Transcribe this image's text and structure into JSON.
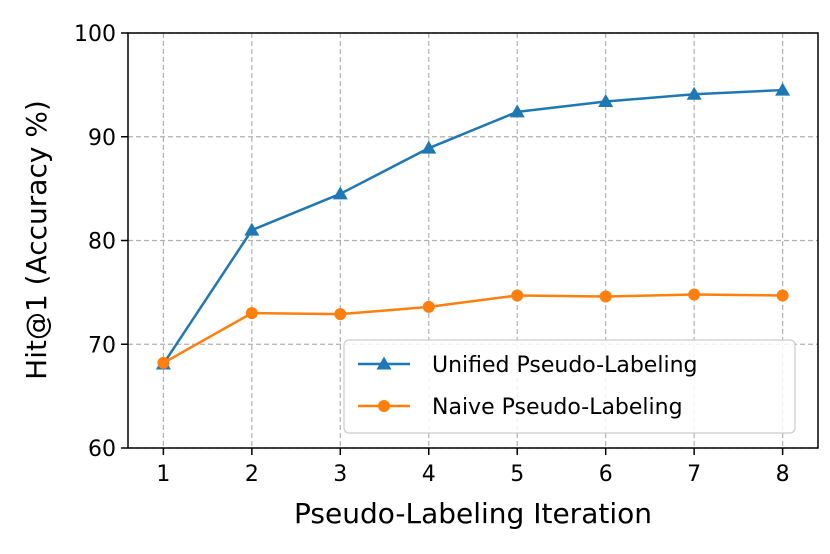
{
  "chart_data": {
    "type": "line",
    "title": "",
    "xlabel": "Pseudo-Labeling Iteration",
    "ylabel": "Hit@1 (Accuracy %)",
    "x": [
      1,
      2,
      3,
      4,
      5,
      6,
      7,
      8
    ],
    "xticks": [
      "1",
      "2",
      "3",
      "4",
      "5",
      "6",
      "7",
      "8"
    ],
    "yticks": [
      "60",
      "70",
      "80",
      "90",
      "100"
    ],
    "xlim": [
      0.6,
      8.4
    ],
    "ylim": [
      60,
      100
    ],
    "grid": true,
    "legend_position": "lower-right",
    "series": [
      {
        "name": "Unified Pseudo-Labeling",
        "marker": "triangle",
        "color": "#1f77b4",
        "values": [
          68.1,
          81.0,
          84.5,
          88.9,
          92.4,
          93.4,
          94.1,
          94.5
        ]
      },
      {
        "name": "Naive Pseudo-Labeling",
        "marker": "circle",
        "color": "#ff7f0e",
        "values": [
          68.2,
          73.0,
          72.9,
          73.6,
          74.7,
          74.6,
          74.8,
          74.7
        ]
      }
    ]
  }
}
